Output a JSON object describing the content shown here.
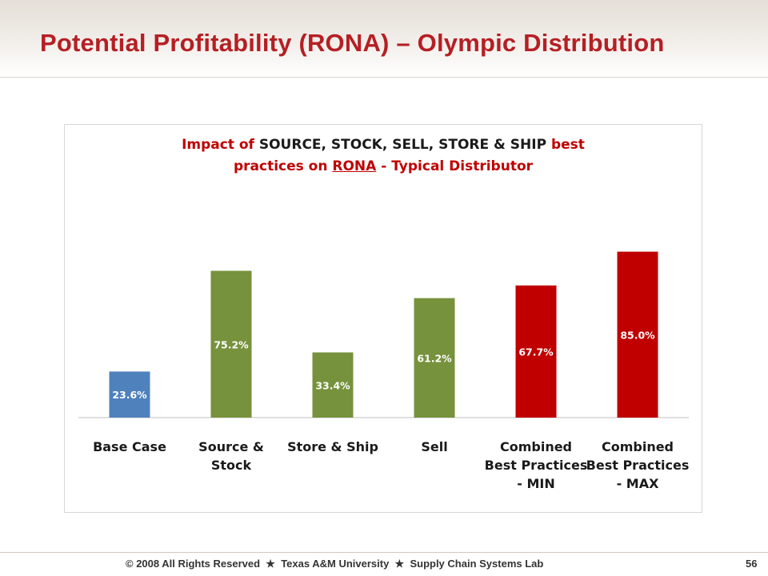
{
  "slide": {
    "title": "Potential Profitability (RONA) – Olympic Distribution",
    "page_number": "56",
    "footer": {
      "copyright": "© 2008 All Rights Reserved",
      "separator_icon": "star-icon",
      "org": "Texas A&M University",
      "lab": "Supply Chain Systems Lab"
    }
  },
  "chart_data": {
    "type": "bar",
    "title_parts": [
      {
        "text": "Impact of ",
        "color": "#c00000"
      },
      {
        "text": "SOURCE, STOCK, SELL, STORE & SHIP",
        "color": "#1a1a1a"
      },
      {
        "text": " best",
        "color": "#c00000"
      },
      {
        "text": "practices on ",
        "color": "#c00000",
        "newline": true
      },
      {
        "text": "RONA",
        "color": "#c00000",
        "underline": true
      },
      {
        "text": " - Typical Distributor",
        "color": "#c00000"
      }
    ],
    "categories": [
      [
        "Base Case"
      ],
      [
        "Source &",
        "Stock"
      ],
      [
        "Store & Ship"
      ],
      [
        "Sell"
      ],
      [
        "Combined",
        "Best Practices",
        "- MIN"
      ],
      [
        "Combined",
        "Best Practices",
        "- MAX"
      ]
    ],
    "values": [
      23.6,
      75.2,
      33.4,
      61.2,
      67.7,
      85.0
    ],
    "data_labels": [
      "23.6%",
      "75.2%",
      "33.4%",
      "61.2%",
      "67.7%",
      "85.0%"
    ],
    "colors": [
      "#4f81bd",
      "#76923c",
      "#76923c",
      "#76923c",
      "#c00000",
      "#c00000"
    ],
    "label_colors": [
      "#ffffff",
      "#ffffff",
      "#ffffff",
      "#ffffff",
      "#ffffff",
      "#ffffff"
    ],
    "ylim": [
      0,
      100
    ],
    "grid": false,
    "legend": "none",
    "xlabel": "",
    "ylabel": ""
  }
}
